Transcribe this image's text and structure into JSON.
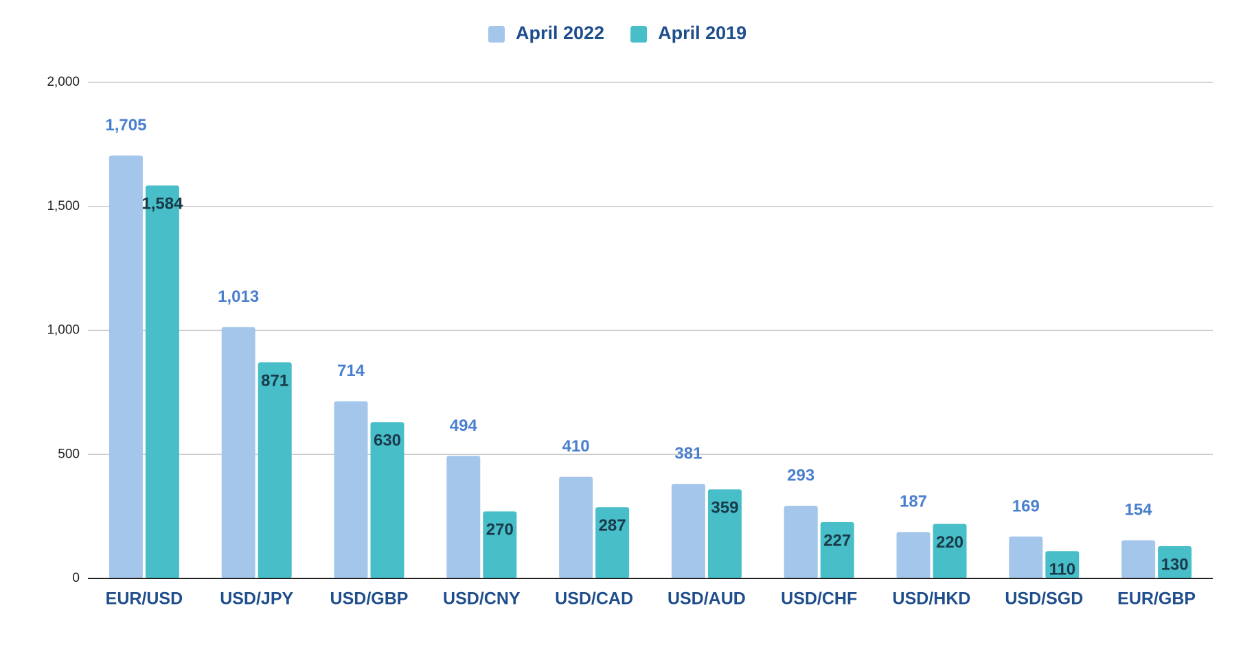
{
  "chart_data": {
    "type": "bar",
    "categories": [
      "EUR/USD",
      "USD/JPY",
      "USD/GBP",
      "USD/CNY",
      "USD/CAD",
      "USD/AUD",
      "USD/CHF",
      "USD/HKD",
      "USD/SGD",
      "EUR/GBP"
    ],
    "series": [
      {
        "name": "April 2022",
        "color": "#a4c6ea",
        "values": [
          1705,
          1013,
          714,
          494,
          410,
          381,
          293,
          187,
          169,
          154
        ],
        "value_labels": [
          "1,705",
          "1,013",
          "714",
          "494",
          "410",
          "381",
          "293",
          "187",
          "169",
          "154"
        ]
      },
      {
        "name": "April 2019",
        "color": "#47bec8",
        "values": [
          1584,
          871,
          630,
          270,
          287,
          359,
          227,
          220,
          110,
          130
        ],
        "value_labels": [
          "1,584",
          "871",
          "630",
          "270",
          "287",
          "359",
          "227",
          "220",
          "110",
          "130"
        ]
      }
    ],
    "ylim": [
      0,
      2000
    ],
    "yticks": [
      0,
      500,
      {
        "value": 1000,
        "label": "1,000"
      },
      {
        "value": 1500,
        "label": "1,500"
      },
      {
        "value": 2000,
        "label": "2,000"
      }
    ],
    "grid": true,
    "legend": "top"
  }
}
